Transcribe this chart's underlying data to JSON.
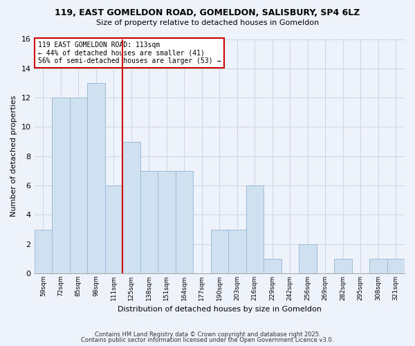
{
  "title1": "119, EAST GOMELDON ROAD, GOMELDON, SALISBURY, SP4 6LZ",
  "title2": "Size of property relative to detached houses in Gomeldon",
  "xlabel": "Distribution of detached houses by size in Gomeldon",
  "ylabel": "Number of detached properties",
  "bin_labels": [
    "59sqm",
    "72sqm",
    "85sqm",
    "98sqm",
    "111sqm",
    "125sqm",
    "138sqm",
    "151sqm",
    "164sqm",
    "177sqm",
    "190sqm",
    "203sqm",
    "216sqm",
    "229sqm",
    "242sqm",
    "256sqm",
    "269sqm",
    "282sqm",
    "295sqm",
    "308sqm",
    "321sqm"
  ],
  "bin_counts": [
    3,
    12,
    12,
    13,
    6,
    9,
    7,
    7,
    7,
    0,
    3,
    3,
    6,
    1,
    0,
    2,
    0,
    1,
    0,
    1,
    1
  ],
  "bar_color": "#cfe0f0",
  "bar_edge_color": "#9bbcd8",
  "vline_color": "#cc0000",
  "annotation_text": "119 EAST GOMELDON ROAD: 113sqm\n← 44% of detached houses are smaller (41)\n56% of semi-detached houses are larger (53) →",
  "annotation_box_color": "white",
  "annotation_box_edge": "#cc0000",
  "ylim": [
    0,
    16
  ],
  "yticks": [
    0,
    2,
    4,
    6,
    8,
    10,
    12,
    14,
    16
  ],
  "bg_color": "#eef3fb",
  "grid_color": "#d0d8e8",
  "footer1": "Contains HM Land Registry data © Crown copyright and database right 2025.",
  "footer2": "Contains public sector information licensed under the Open Government Licence v3.0."
}
